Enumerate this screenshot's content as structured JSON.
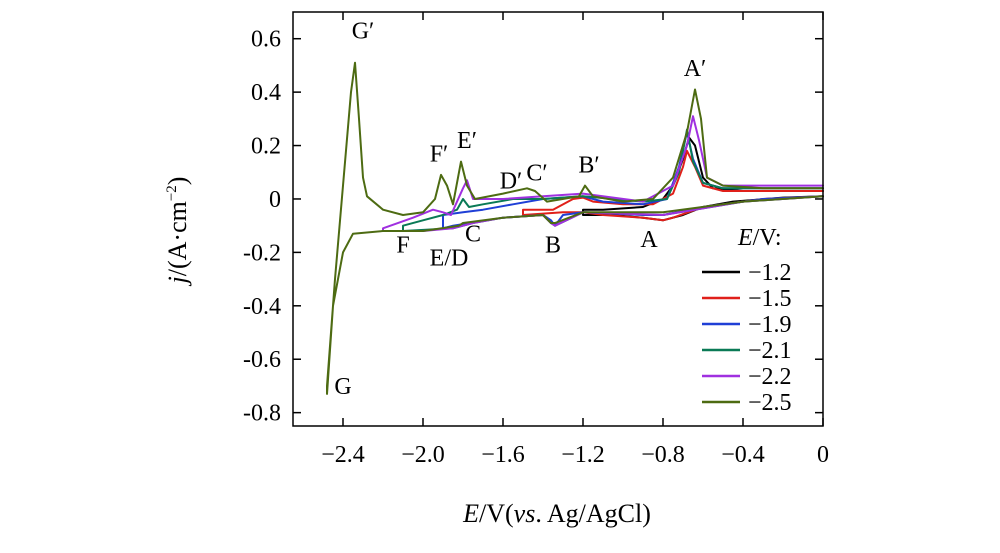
{
  "chart_data": {
    "type": "line",
    "title": "",
    "xlabel": {
      "symbol": "E",
      "rest": "/V(",
      "italic": "vs",
      "tail": ". Ag/AgCl)"
    },
    "ylabel": {
      "symbol": "j",
      "rest": "/(A·cm",
      "sup": "−2",
      "tail": ")"
    },
    "xlim": [
      -2.65,
      0
    ],
    "ylim": [
      -0.85,
      0.7
    ],
    "xticks": [
      {
        "value": -2.4,
        "label": "−2.4"
      },
      {
        "value": -2.0,
        "label": "−2.0"
      },
      {
        "value": -1.6,
        "label": "−1.6"
      },
      {
        "value": -1.2,
        "label": "−1.2"
      },
      {
        "value": -0.8,
        "label": "−0.8"
      },
      {
        "value": -0.4,
        "label": "−0.4"
      },
      {
        "value": 0,
        "label": "0"
      }
    ],
    "yticks": [
      {
        "value": 0.6,
        "label": "0.6"
      },
      {
        "value": 0.4,
        "label": "0.4"
      },
      {
        "value": 0.2,
        "label": "0.2"
      },
      {
        "value": 0,
        "label": "0"
      },
      {
        "value": -0.2,
        "label": "-0.2"
      },
      {
        "value": -0.4,
        "label": "-0.4"
      },
      {
        "value": -0.6,
        "label": "-0.6"
      },
      {
        "value": -0.8,
        "label": "-0.8"
      }
    ],
    "legend": {
      "title_symbol": "E",
      "title_rest": "/V:",
      "placement": "bottom-right"
    },
    "series": [
      {
        "name": "−1.2",
        "color": "#000000",
        "x": [
          0,
          -0.2,
          -0.45,
          -0.6,
          -0.7,
          -0.8,
          -0.9,
          -1.05,
          -1.2,
          -1.2,
          -1.1,
          -0.9,
          -0.8,
          -0.75,
          -0.7,
          -0.67,
          -0.64,
          -0.6,
          -0.55,
          -0.4,
          -0.2,
          0
        ],
        "y": [
          0.01,
          0.005,
          -0.01,
          -0.03,
          -0.06,
          -0.08,
          -0.07,
          -0.06,
          -0.06,
          -0.04,
          -0.04,
          -0.03,
          0.0,
          0.05,
          0.15,
          0.23,
          0.2,
          0.08,
          0.04,
          0.03,
          0.03,
          0.03
        ]
      },
      {
        "name": "−1.5",
        "color": "#e0201a",
        "x": [
          0,
          -0.3,
          -0.6,
          -0.75,
          -0.8,
          -0.9,
          -1.1,
          -1.2,
          -1.3,
          -1.5,
          -1.5,
          -1.35,
          -1.25,
          -1.2,
          -1.15,
          -1.0,
          -0.85,
          -0.75,
          -0.7,
          -0.68,
          -0.64,
          -0.6,
          -0.5,
          -0.3,
          0
        ],
        "y": [
          0.01,
          0.0,
          -0.03,
          -0.07,
          -0.08,
          -0.07,
          -0.06,
          -0.05,
          -0.05,
          -0.06,
          -0.04,
          -0.04,
          0.0,
          0.005,
          -0.01,
          -0.02,
          -0.02,
          0.02,
          0.12,
          0.18,
          0.12,
          0.05,
          0.03,
          0.03,
          0.03
        ]
      },
      {
        "name": "−1.9",
        "color": "#1f3fd6",
        "x": [
          0,
          -0.3,
          -0.6,
          -0.8,
          -0.9,
          -1.2,
          -1.3,
          -1.34,
          -1.36,
          -1.4,
          -1.6,
          -1.85,
          -1.9,
          -1.9,
          -1.8,
          -1.7,
          -1.55,
          -1.4,
          -1.2,
          -1.1,
          -0.9,
          -0.78,
          -0.72,
          -0.68,
          -0.65,
          -0.6,
          -0.5,
          -0.3,
          0
        ],
        "y": [
          0.01,
          0.0,
          -0.03,
          -0.06,
          -0.06,
          -0.05,
          -0.06,
          -0.1,
          -0.08,
          -0.06,
          -0.07,
          -0.1,
          -0.11,
          -0.06,
          -0.05,
          -0.04,
          -0.02,
          0.0,
          0.01,
          -0.01,
          -0.02,
          0.0,
          0.12,
          0.25,
          0.15,
          0.06,
          0.04,
          0.04,
          0.04
        ]
      },
      {
        "name": "−2.1",
        "color": "#0a7a56",
        "x": [
          0,
          -0.4,
          -0.8,
          -1.2,
          -1.34,
          -1.36,
          -1.4,
          -1.6,
          -1.75,
          -1.8,
          -1.85,
          -2.1,
          -2.1,
          -2.0,
          -1.9,
          -1.83,
          -1.8,
          -1.77,
          -1.7,
          -1.55,
          -1.4,
          -1.2,
          -0.9,
          -0.78,
          -0.72,
          -0.68,
          -0.65,
          -0.6,
          -0.5,
          -0.3,
          0
        ],
        "y": [
          0.01,
          -0.01,
          -0.06,
          -0.05,
          -0.1,
          -0.09,
          -0.06,
          -0.07,
          -0.09,
          -0.1,
          -0.11,
          -0.12,
          -0.1,
          -0.08,
          -0.06,
          -0.04,
          0.0,
          -0.03,
          -0.02,
          0.0,
          0.0,
          0.01,
          -0.01,
          0.0,
          0.1,
          0.26,
          0.14,
          0.06,
          0.04,
          0.04,
          0.04
        ]
      },
      {
        "name": "−2.2",
        "color": "#a030e0",
        "x": [
          0,
          -0.4,
          -0.8,
          -1.2,
          -1.34,
          -1.36,
          -1.4,
          -1.6,
          -1.75,
          -1.8,
          -1.85,
          -2.0,
          -2.2,
          -2.2,
          -2.05,
          -1.95,
          -1.9,
          -1.86,
          -1.8,
          -1.78,
          -1.75,
          -1.6,
          -1.4,
          -1.2,
          -0.9,
          -0.75,
          -0.68,
          -0.65,
          -0.62,
          -0.58,
          -0.5,
          -0.3,
          0
        ],
        "y": [
          0.01,
          -0.01,
          -0.06,
          -0.05,
          -0.1,
          -0.09,
          -0.06,
          -0.07,
          -0.09,
          -0.1,
          -0.11,
          -0.12,
          -0.12,
          -0.11,
          -0.07,
          -0.04,
          -0.05,
          -0.06,
          0.04,
          0.07,
          0.0,
          0.0,
          0.01,
          0.02,
          -0.01,
          0.05,
          0.2,
          0.31,
          0.22,
          0.08,
          0.05,
          0.05,
          0.05
        ]
      },
      {
        "name": "−2.5",
        "color": "#4d6b12",
        "x": [
          0,
          -0.4,
          -0.8,
          -1.2,
          -1.34,
          -1.36,
          -1.4,
          -1.6,
          -1.8,
          -1.82,
          -2.0,
          -2.2,
          -2.35,
          -2.4,
          -2.45,
          -2.48,
          -2.48,
          -2.44,
          -2.4,
          -2.36,
          -2.34,
          -2.32,
          -2.3,
          -2.28,
          -2.2,
          -2.1,
          -2.0,
          -1.94,
          -1.91,
          -1.88,
          -1.85,
          -1.81,
          -1.78,
          -1.74,
          -1.6,
          -1.48,
          -1.44,
          -1.38,
          -1.22,
          -1.19,
          -1.15,
          -1.0,
          -0.85,
          -0.75,
          -0.68,
          -0.64,
          -0.61,
          -0.58,
          -0.5,
          -0.3,
          0
        ],
        "y": [
          0.01,
          -0.01,
          -0.05,
          -0.05,
          -0.09,
          -0.09,
          -0.06,
          -0.07,
          -0.09,
          -0.1,
          -0.12,
          -0.12,
          -0.13,
          -0.2,
          -0.4,
          -0.73,
          -0.7,
          -0.3,
          0.05,
          0.4,
          0.51,
          0.3,
          0.08,
          0.01,
          -0.04,
          -0.06,
          -0.05,
          0.0,
          0.09,
          0.05,
          -0.02,
          0.14,
          0.05,
          0.0,
          0.02,
          0.04,
          0.03,
          -0.01,
          0.01,
          0.05,
          0.01,
          -0.01,
          0.0,
          0.08,
          0.25,
          0.41,
          0.3,
          0.08,
          0.05,
          0.04,
          0.04
        ]
      }
    ],
    "annotations": [
      {
        "text": "G′",
        "x": -2.3,
        "y": 0.6
      },
      {
        "text": "G",
        "x": -2.4,
        "y": -0.73
      },
      {
        "text": "F′",
        "x": -1.92,
        "y": 0.14
      },
      {
        "text": "E′",
        "x": -1.78,
        "y": 0.19
      },
      {
        "text": "D′",
        "x": -1.56,
        "y": 0.04
      },
      {
        "text": "C′",
        "x": -1.43,
        "y": 0.07
      },
      {
        "text": "B′",
        "x": -1.17,
        "y": 0.1
      },
      {
        "text": "A′",
        "x": -0.64,
        "y": 0.46
      },
      {
        "text": "F",
        "x": -2.1,
        "y": -0.2
      },
      {
        "text": "E/D",
        "x": -1.87,
        "y": -0.25
      },
      {
        "text": "C",
        "x": -1.75,
        "y": -0.16
      },
      {
        "text": "B",
        "x": -1.35,
        "y": -0.2
      },
      {
        "text": "A",
        "x": -0.87,
        "y": -0.18
      }
    ]
  }
}
